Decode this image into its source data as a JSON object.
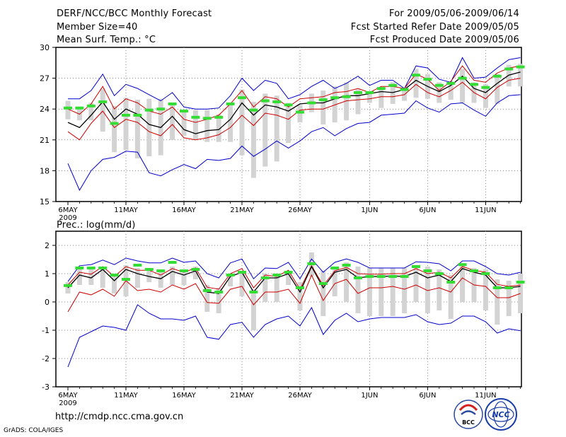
{
  "header": {
    "title": "DERF/NCC/BCC Monthly Forecast",
    "member_size": "Member Size=40",
    "variable": "Mean Surf. Temp.: °C",
    "period": "For 2009/05/06-2009/06/14",
    "start_date": "Fcst Started Refer Date 2009/05/05",
    "produced_date": "Fcst Produced Date 2009/05/06"
  },
  "footer": {
    "url": "http://cmdp.ncc.cma.gov.cn",
    "credit": "GrADS: COLA/IGES",
    "logo_bcc": "BCC",
    "logo_ncc": "NCC"
  },
  "colors": {
    "envelope": "#0000cc",
    "spread": "#cc0000",
    "mean": "#000000",
    "box": "#d3d3d3",
    "marker": "#33dd33",
    "grid": "#888888"
  },
  "chart_data": [
    {
      "type": "line",
      "title": "Mean Surf. Temp.: °C",
      "ylim": [
        15,
        30
      ],
      "yticks": [
        "15",
        "18",
        "21",
        "24",
        "27",
        "30"
      ],
      "xtick_labels": [
        "6MAY",
        "11MAY",
        "16MAY",
        "21MAY",
        "26MAY",
        "1JUN",
        "6JUN",
        "11JUN"
      ],
      "xtick_days": [
        0,
        5,
        10,
        15,
        20,
        26,
        31,
        36
      ],
      "year_label": "2009",
      "x_days": [
        0,
        1,
        2,
        3,
        4,
        5,
        6,
        7,
        8,
        9,
        10,
        11,
        12,
        13,
        14,
        15,
        16,
        17,
        18,
        19,
        20,
        21,
        22,
        23,
        24,
        25,
        26,
        27,
        28,
        29,
        30,
        31,
        32,
        33,
        34,
        35,
        36,
        37,
        38,
        39
      ],
      "series": [
        {
          "name": "max",
          "values": [
            25.0,
            25.0,
            25.8,
            27.4,
            25.3,
            26.4,
            26.0,
            25.4,
            24.8,
            25.6,
            24.2,
            24.0,
            24.0,
            24.1,
            25.3,
            27.0,
            25.8,
            26.8,
            26.5,
            25.0,
            25.4,
            26.2,
            26.8,
            26.0,
            26.5,
            27.2,
            26.3,
            26.8,
            26.8,
            26.0,
            28.2,
            28.0,
            26.9,
            26.6,
            29.0,
            27.0,
            27.1,
            28.0,
            28.8,
            29.0
          ]
        },
        {
          "name": "upper",
          "values": [
            24.0,
            23.5,
            24.5,
            26.2,
            24.0,
            25.0,
            24.6,
            23.8,
            23.5,
            24.2,
            23.0,
            22.7,
            23.0,
            23.4,
            24.5,
            25.8,
            24.2,
            25.2,
            25.0,
            24.2,
            25.0,
            25.1,
            25.2,
            25.6,
            25.7,
            26.0,
            25.6,
            26.2,
            26.2,
            26.0,
            27.4,
            26.9,
            25.8,
            26.7,
            28.2,
            26.8,
            26.6,
            27.5,
            28.0,
            28.2
          ]
        },
        {
          "name": "mean",
          "values": [
            22.7,
            22.2,
            23.4,
            24.7,
            23.0,
            24.0,
            23.5,
            22.5,
            22.2,
            23.3,
            22.0,
            21.6,
            21.9,
            22.0,
            23.0,
            24.6,
            23.4,
            24.4,
            24.2,
            23.8,
            24.5,
            24.6,
            24.6,
            25.0,
            25.3,
            25.3,
            25.5,
            25.7,
            25.6,
            25.9,
            26.8,
            26.2,
            25.7,
            26.3,
            27.2,
            26.0,
            25.6,
            26.5,
            27.3,
            27.6
          ]
        },
        {
          "name": "lower",
          "values": [
            21.8,
            21.0,
            22.6,
            23.8,
            22.2,
            23.0,
            22.7,
            21.8,
            21.4,
            22.5,
            21.2,
            21.0,
            21.2,
            21.5,
            22.2,
            23.4,
            22.4,
            23.6,
            23.4,
            23.0,
            23.9,
            24.0,
            24.0,
            24.4,
            24.8,
            24.9,
            25.0,
            25.2,
            25.2,
            25.4,
            26.4,
            25.6,
            25.2,
            25.8,
            26.6,
            25.6,
            25.0,
            26.1,
            26.8,
            27.0
          ]
        },
        {
          "name": "min",
          "values": [
            18.7,
            16.1,
            18.0,
            19.1,
            19.3,
            19.9,
            19.8,
            17.8,
            17.5,
            18.1,
            18.6,
            18.2,
            19.1,
            19.0,
            19.2,
            20.4,
            19.4,
            20.1,
            20.9,
            20.2,
            20.9,
            21.8,
            22.2,
            21.4,
            22.1,
            22.6,
            22.7,
            23.4,
            23.5,
            23.6,
            24.8,
            24.1,
            23.7,
            24.5,
            24.6,
            23.9,
            23.3,
            24.6,
            25.3,
            25.4
          ]
        },
        {
          "name": "box_top",
          "values": [
            24.8,
            24.2,
            24.6,
            26.0,
            24.3,
            25.1,
            24.9,
            25.0,
            25.0,
            24.6,
            23.9,
            23.9,
            23.9,
            23.5,
            24.6,
            25.9,
            24.7,
            25.5,
            25.3,
            24.6,
            24.4,
            25.5,
            25.8,
            26.2,
            26.6,
            25.9,
            25.6,
            26.1,
            26.6,
            25.9,
            27.9,
            27.4,
            26.6,
            26.7,
            27.9,
            26.6,
            26.4,
            27.4,
            28.3,
            28.4
          ]
        },
        {
          "name": "box_bottom",
          "values": [
            23.0,
            22.9,
            22.9,
            21.8,
            19.8,
            20.0,
            19.2,
            19.4,
            19.5,
            21.0,
            21.4,
            21.0,
            20.8,
            20.8,
            20.8,
            19.5,
            17.3,
            18.4,
            18.9,
            20.7,
            22.7,
            23.7,
            22.5,
            22.7,
            22.9,
            23.5,
            24.6,
            24.1,
            24.5,
            24.8,
            25.1,
            25.0,
            24.6,
            24.9,
            24.6,
            24.6,
            24.1,
            24.5,
            26.2,
            26.2
          ]
        },
        {
          "name": "median",
          "values": [
            24.1,
            24.1,
            24.3,
            24.7,
            22.6,
            23.4,
            23.4,
            23.9,
            24.0,
            24.5,
            23.8,
            23.2,
            23.1,
            23.2,
            24.5,
            25.1,
            23.9,
            24.8,
            24.7,
            24.4,
            23.7,
            24.6,
            24.9,
            25.1,
            25.2,
            25.6,
            25.6,
            26.0,
            26.3,
            25.9,
            27.3,
            26.9,
            26.3,
            26.5,
            27.0,
            26.4,
            26.1,
            27.2,
            27.9,
            28.1
          ]
        }
      ]
    },
    {
      "type": "line",
      "title": "Prec.: log(mm/d)",
      "ylim": [
        -3,
        2.5
      ],
      "yticks": [
        "-3",
        "-2",
        "-1",
        "0",
        "1",
        "2"
      ],
      "xtick_labels": [
        "6MAY",
        "11MAY",
        "16MAY",
        "21MAY",
        "26MAY",
        "1JUN",
        "6JUN",
        "11JUN"
      ],
      "xtick_days": [
        0,
        5,
        10,
        15,
        20,
        26,
        31,
        36
      ],
      "year_label": "2009",
      "x_days": [
        0,
        1,
        2,
        3,
        4,
        5,
        6,
        7,
        8,
        9,
        10,
        11,
        12,
        13,
        14,
        15,
        16,
        17,
        18,
        19,
        20,
        21,
        22,
        23,
        24,
        25,
        26,
        27,
        28,
        29,
        30,
        31,
        32,
        33,
        34,
        35,
        36,
        37,
        38,
        39
      ],
      "series": [
        {
          "name": "max",
          "values": [
            0.72,
            1.28,
            1.32,
            1.48,
            1.32,
            1.55,
            1.45,
            1.38,
            1.38,
            1.55,
            1.4,
            1.45,
            1.0,
            0.85,
            1.38,
            1.52,
            0.82,
            1.2,
            1.18,
            1.4,
            0.82,
            1.52,
            1.05,
            1.4,
            1.52,
            1.4,
            1.2,
            1.2,
            1.2,
            1.2,
            1.42,
            1.4,
            1.35,
            1.1,
            1.45,
            1.45,
            1.25,
            1.0,
            0.95,
            1.05
          ]
        },
        {
          "name": "upper",
          "values": [
            0.6,
            1.05,
            0.98,
            1.25,
            0.9,
            1.25,
            1.12,
            1.12,
            0.95,
            1.18,
            1.05,
            1.2,
            0.52,
            0.45,
            1.0,
            1.18,
            0.5,
            0.95,
            0.9,
            1.12,
            0.45,
            1.28,
            0.58,
            1.1,
            1.22,
            1.0,
            0.98,
            0.98,
            1.0,
            1.0,
            1.18,
            1.0,
            1.05,
            0.85,
            1.25,
            1.12,
            1.05,
            0.62,
            0.55,
            0.6
          ]
        },
        {
          "name": "mean",
          "values": [
            0.5,
            0.95,
            0.85,
            1.15,
            0.75,
            1.15,
            1.0,
            0.9,
            0.82,
            1.08,
            0.95,
            1.1,
            0.35,
            0.3,
            0.9,
            1.05,
            0.35,
            0.85,
            0.85,
            1.0,
            0.35,
            1.25,
            0.5,
            1.05,
            1.15,
            0.85,
            0.9,
            0.9,
            0.92,
            0.9,
            1.05,
            0.85,
            0.95,
            0.72,
            1.18,
            1.05,
            0.95,
            0.5,
            0.5,
            0.55
          ]
        },
        {
          "name": "lower",
          "values": [
            -0.35,
            0.35,
            0.25,
            0.45,
            0.2,
            0.75,
            0.4,
            0.45,
            0.35,
            0.6,
            0.45,
            0.65,
            -0.02,
            -0.05,
            0.45,
            0.55,
            -0.1,
            0.35,
            0.35,
            0.45,
            -0.05,
            0.95,
            0.05,
            0.65,
            0.8,
            0.3,
            0.5,
            0.5,
            0.55,
            0.45,
            0.6,
            0.4,
            0.5,
            0.35,
            0.85,
            0.6,
            0.55,
            0.15,
            0.15,
            0.3
          ]
        },
        {
          "name": "min",
          "values": [
            -2.3,
            -1.25,
            -1.05,
            -0.85,
            -0.9,
            -1.0,
            -0.1,
            -0.4,
            -0.6,
            -0.6,
            -0.65,
            -0.5,
            -1.25,
            -1.32,
            -0.8,
            -0.72,
            -1.25,
            -0.8,
            -0.6,
            -0.5,
            -0.85,
            -0.2,
            -1.15,
            -0.65,
            -0.4,
            -0.7,
            -0.6,
            -0.55,
            -0.55,
            -0.55,
            -0.45,
            -0.7,
            -0.8,
            -0.75,
            -0.5,
            -0.5,
            -0.7,
            -1.1,
            -0.95,
            -1.02
          ]
        },
        {
          "name": "box_top",
          "values": [
            0.7,
            1.25,
            1.25,
            1.25,
            1.0,
            1.3,
            1.2,
            1.15,
            1.15,
            1.25,
            1.1,
            1.25,
            0.6,
            0.5,
            1.0,
            1.1,
            0.45,
            1.0,
            1.0,
            1.1,
            0.7,
            1.75,
            1.1,
            1.25,
            1.4,
            1.25,
            1.2,
            1.2,
            1.2,
            1.2,
            1.3,
            1.25,
            1.15,
            0.95,
            1.35,
            1.2,
            1.15,
            0.8,
            0.75,
            1.0
          ]
        },
        {
          "name": "box_bottom",
          "values": [
            0.3,
            0.6,
            0.6,
            0.5,
            0.3,
            0.2,
            0.5,
            0.7,
            0.5,
            0.6,
            0.6,
            0.8,
            -0.35,
            -0.4,
            0.55,
            0.2,
            -1.0,
            0.0,
            0.0,
            0.6,
            -0.3,
            0.9,
            -0.5,
            0.2,
            0.0,
            -0.4,
            -0.5,
            -0.5,
            -0.5,
            -0.4,
            0.0,
            -0.4,
            -0.3,
            -0.6,
            0.0,
            0.0,
            -0.3,
            -0.8,
            -0.5,
            -0.4
          ]
        },
        {
          "name": "median",
          "values": [
            0.58,
            1.2,
            1.2,
            1.2,
            0.95,
            0.8,
            1.3,
            1.15,
            1.1,
            1.4,
            1.1,
            1.15,
            0.4,
            0.35,
            0.95,
            1.05,
            0.35,
            0.85,
            0.95,
            1.05,
            0.5,
            1.35,
            0.65,
            1.2,
            1.3,
            0.85,
            0.9,
            0.9,
            0.9,
            0.9,
            1.25,
            1.1,
            1.0,
            0.7,
            1.32,
            1.1,
            1.0,
            0.5,
            0.5,
            0.7
          ]
        }
      ]
    }
  ]
}
